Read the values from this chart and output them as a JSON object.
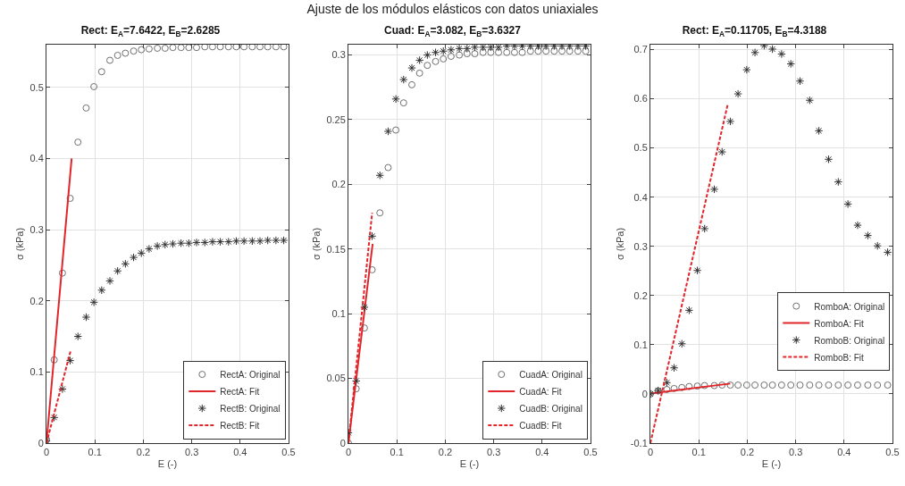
{
  "chart_data": [
    {
      "type": "scatter",
      "title": "Rect: E$_{A}$=7.6422, E$_{B}$=2.6285",
      "annotations": [
        "Ajuste de los módulos elásticos con datos uniaxiales"
      ],
      "xlabel": "E (-)",
      "ylabel": "σ (kPa)",
      "xlim": [
        0,
        0.5
      ],
      "xticks": [
        0,
        0.1,
        0.2,
        0.3,
        0.4,
        0.5
      ],
      "ylim": [
        0,
        0.56
      ],
      "yticks": [
        0,
        0.1,
        0.2,
        0.3,
        0.4,
        0.5
      ],
      "grid": true,
      "legend": "bottom right",
      "x": [
        0,
        0.016,
        0.033,
        0.049,
        0.065,
        0.082,
        0.098,
        0.114,
        0.131,
        0.147,
        0.163,
        0.18,
        0.196,
        0.212,
        0.229,
        0.245,
        0.261,
        0.278,
        0.294,
        0.31,
        0.327,
        0.343,
        0.359,
        0.376,
        0.392,
        0.408,
        0.425,
        0.441,
        0.457,
        0.474,
        0.49
      ],
      "series": [
        {
          "name": "RectA: Original",
          "color": "#707070",
          "marker": "circle",
          "values": [
            0.005,
            0.117,
            0.239,
            0.344,
            0.423,
            0.471,
            0.501,
            0.522,
            0.538,
            0.545,
            0.548,
            0.551,
            0.553,
            0.554,
            0.555,
            0.555,
            0.556,
            0.556,
            0.556,
            0.556,
            0.557,
            0.557,
            0.557,
            0.557,
            0.557,
            0.557,
            0.557,
            0.557,
            0.557,
            0.557,
            0.557
          ]
        },
        {
          "name": "RectA: Fit",
          "type": "line",
          "color": "#e0262b",
          "line_style": "solid",
          "x": [
            0,
            0.052
          ],
          "values": [
            0,
            0.4
          ]
        },
        {
          "name": "RectB: Original",
          "color": "#303030",
          "marker": "cross",
          "values": [
            0.003,
            0.036,
            0.076,
            0.116,
            0.15,
            0.177,
            0.198,
            0.215,
            0.228,
            0.242,
            0.252,
            0.261,
            0.267,
            0.273,
            0.277,
            0.279,
            0.28,
            0.281,
            0.281,
            0.282,
            0.282,
            0.283,
            0.283,
            0.283,
            0.284,
            0.284,
            0.284,
            0.284,
            0.285,
            0.285,
            0.285
          ]
        },
        {
          "name": "RectB: Fit",
          "type": "line",
          "color": "#e0262b",
          "line_style": "dashed",
          "x": [
            0,
            0.05
          ],
          "values": [
            0,
            0.13
          ]
        }
      ]
    },
    {
      "type": "scatter",
      "title": "Cuad: E$_{A}$=3.082, E$_{B}$=3.6327",
      "xlabel": "E (-)",
      "ylabel": "σ (kPa)",
      "xlim": [
        0,
        0.5
      ],
      "xticks": [
        0,
        0.1,
        0.2,
        0.3,
        0.4,
        0.5
      ],
      "ylim": [
        0,
        0.308
      ],
      "yticks": [
        0,
        0.05,
        0.1,
        0.15,
        0.2,
        0.25,
        0.3
      ],
      "grid": true,
      "legend": "bottom right",
      "x": [
        0,
        0.016,
        0.033,
        0.049,
        0.065,
        0.082,
        0.098,
        0.114,
        0.131,
        0.147,
        0.163,
        0.18,
        0.196,
        0.212,
        0.229,
        0.245,
        0.261,
        0.278,
        0.294,
        0.31,
        0.327,
        0.343,
        0.359,
        0.376,
        0.392,
        0.408,
        0.425,
        0.441,
        0.457,
        0.474,
        0.49
      ],
      "series": [
        {
          "name": "CuadA: Original",
          "color": "#707070",
          "marker": "circle",
          "values": [
            0,
            0.042,
            0.089,
            0.134,
            0.178,
            0.213,
            0.242,
            0.263,
            0.277,
            0.286,
            0.292,
            0.295,
            0.297,
            0.299,
            0.3,
            0.301,
            0.301,
            0.302,
            0.302,
            0.302,
            0.302,
            0.302,
            0.302,
            0.303,
            0.303,
            0.303,
            0.303,
            0.303,
            0.303,
            0.303,
            0.303
          ]
        },
        {
          "name": "CuadA: Fit",
          "type": "line",
          "color": "#e0262b",
          "line_style": "solid",
          "x": [
            0,
            0.05
          ],
          "values": [
            0,
            0.154
          ]
        },
        {
          "name": "CuadB: Original",
          "color": "#303030",
          "marker": "cross",
          "values": [
            0.008,
            0.048,
            0.105,
            0.16,
            0.207,
            0.241,
            0.266,
            0.281,
            0.29,
            0.296,
            0.3,
            0.302,
            0.303,
            0.304,
            0.305,
            0.305,
            0.306,
            0.306,
            0.306,
            0.306,
            0.307,
            0.307,
            0.307,
            0.307,
            0.307,
            0.307,
            0.307,
            0.307,
            0.307,
            0.307,
            0.307
          ]
        },
        {
          "name": "CuadB: Fit",
          "type": "line",
          "color": "#e0262b",
          "line_style": "dashed",
          "x": [
            0,
            0.049
          ],
          "values": [
            0,
            0.178
          ]
        }
      ]
    },
    {
      "type": "scatter",
      "title": "Rect: E$_{A}$=0.11705, E$_{B}$=4.3188",
      "xlabel": "E (-)",
      "ylabel": "σ (kPa)",
      "xlim": [
        0,
        0.5
      ],
      "xticks": [
        0,
        0.1,
        0.2,
        0.3,
        0.4,
        0.5
      ],
      "ylim": [
        -0.1,
        0.71
      ],
      "yticks": [
        -0.1,
        0,
        0.1,
        0.2,
        0.3,
        0.4,
        0.5,
        0.6,
        0.7
      ],
      "grid": true,
      "legend": "right",
      "x": [
        0,
        0.016,
        0.034,
        0.049,
        0.065,
        0.08,
        0.097,
        0.112,
        0.132,
        0.148,
        0.165,
        0.181,
        0.199,
        0.216,
        0.235,
        0.252,
        0.271,
        0.29,
        0.309,
        0.329,
        0.348,
        0.368,
        0.388,
        0.408,
        0.428,
        0.449,
        0.469,
        0.49
      ],
      "series": [
        {
          "name": "RomboA: Original",
          "color": "#707070",
          "marker": "circle",
          "values": [
            0,
            0.006,
            0.009,
            0.011,
            0.013,
            0.015,
            0.016,
            0.017,
            0.017,
            0.018,
            0.018,
            0.018,
            0.018,
            0.018,
            0.018,
            0.018,
            0.018,
            0.018,
            0.018,
            0.018,
            0.018,
            0.018,
            0.018,
            0.018,
            0.018,
            0.018,
            0.018,
            0.018
          ]
        },
        {
          "name": "RomboA: Fit",
          "type": "line",
          "color": "#e0262b",
          "line_style": "solid",
          "x": [
            0,
            0.165
          ],
          "values": [
            0.001,
            0.021
          ]
        },
        {
          "name": "RomboB: Original",
          "color": "#303030",
          "marker": "cross",
          "values": [
            0,
            0.007,
            0.023,
            0.053,
            0.102,
            0.17,
            0.251,
            0.336,
            0.416,
            0.492,
            0.554,
            0.61,
            0.659,
            0.694,
            0.708,
            0.701,
            0.691,
            0.671,
            0.636,
            0.597,
            0.535,
            0.477,
            0.431,
            0.386,
            0.343,
            0.322,
            0.301,
            0.288
          ]
        },
        {
          "name": "RomboB: Fit",
          "type": "line",
          "color": "#e0262b",
          "line_style": "dashed",
          "x": [
            0,
            0.16
          ],
          "values": [
            -0.1,
            0.59
          ]
        }
      ]
    }
  ]
}
